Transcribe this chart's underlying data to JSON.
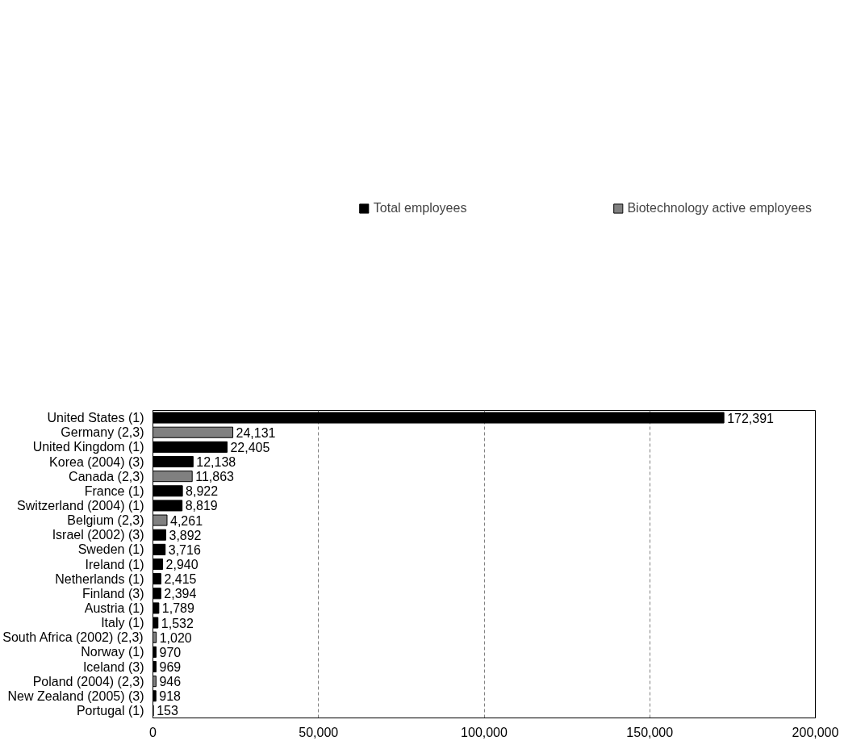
{
  "chart_data": {
    "type": "bar",
    "orientation": "horizontal",
    "categories": [
      "United States (1)",
      "Germany (2,3)",
      "United Kingdom (1)",
      "Korea (2004) (3)",
      "Canada (2,3)",
      "France (1)",
      "Switzerland (2004) (1)",
      "Belgium (2,3)",
      "Israel (2002) (3)",
      "Sweden (1)",
      "Ireland (1)",
      "Netherlands (1)",
      "Finland (3)",
      "Austria (1)",
      "Italy (1)",
      "South Africa (2002) (2,3)",
      "Norway (1)",
      "Iceland (3)",
      "Poland (2004) (2,3)",
      "New Zealand (2005) (3)",
      "Portugal (1)"
    ],
    "series": [
      {
        "name": "Total employees",
        "color": "#000000",
        "values": [
          172391,
          null,
          22405,
          12138,
          null,
          8922,
          8819,
          null,
          3892,
          3716,
          2940,
          2415,
          2394,
          1789,
          1532,
          null,
          970,
          969,
          null,
          918,
          153
        ],
        "value_labels": [
          "172,391",
          null,
          "22,405",
          "12,138",
          null,
          "8,922",
          "8,819",
          null,
          "3,892",
          "3,716",
          "2,940",
          "2,415",
          "2,394",
          "1,789",
          "1,532",
          null,
          "970",
          "969",
          null,
          "918",
          "153"
        ]
      },
      {
        "name": "Biotechnology active employees",
        "color": "#808080",
        "values": [
          null,
          24131,
          null,
          null,
          11863,
          null,
          null,
          4261,
          null,
          null,
          null,
          null,
          null,
          null,
          null,
          1020,
          null,
          null,
          946,
          null,
          null
        ],
        "value_labels": [
          null,
          "24,131",
          null,
          null,
          "11,863",
          null,
          null,
          "4,261",
          null,
          null,
          null,
          null,
          null,
          null,
          null,
          "1,020",
          null,
          null,
          "946",
          null,
          null
        ]
      }
    ],
    "xlim": [
      0,
      200000
    ],
    "xticks": [
      0,
      {
        "value": 50000,
        "label": "50,000"
      },
      {
        "value": 100000,
        "label": "100,000"
      },
      {
        "value": 150000,
        "label": "150,000"
      },
      {
        "value": 200000,
        "label": "200,000"
      }
    ],
    "grid": "x",
    "legend": "top"
  }
}
